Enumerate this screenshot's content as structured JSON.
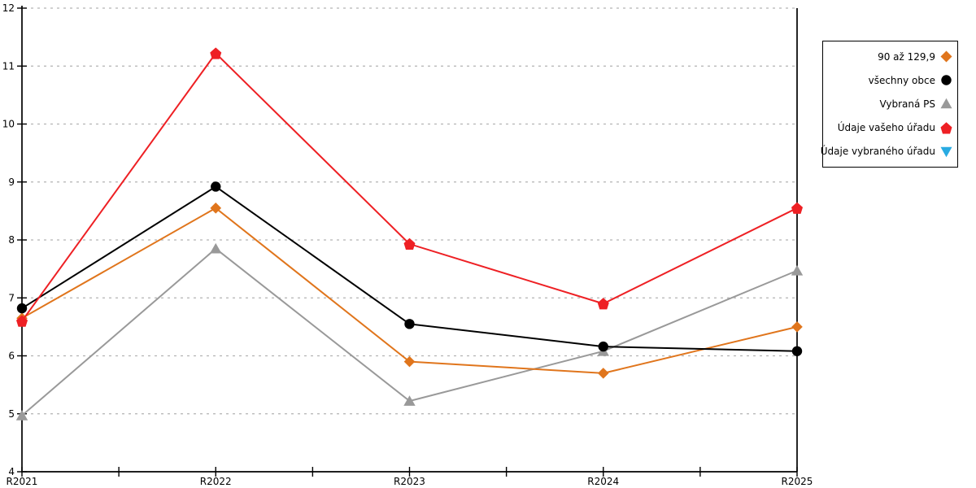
{
  "chart_data": {
    "type": "line",
    "title": "",
    "xlabel": "",
    "ylabel": "",
    "categories": [
      "R2021",
      "R2022",
      "R2023",
      "R2024",
      "R2025"
    ],
    "ylim": [
      4,
      12
    ],
    "yticks": [
      4,
      5,
      6,
      7,
      8,
      9,
      10,
      11,
      12
    ],
    "grid": "horizontal-dashed",
    "legend_position": "right",
    "series": [
      {
        "name": "90 až 129,9",
        "marker": "diamond",
        "color": "#e0751c",
        "values": [
          6.65,
          8.55,
          5.9,
          5.7,
          6.5
        ]
      },
      {
        "name": "všechny obce",
        "marker": "circle",
        "color": "#000000",
        "values": [
          6.82,
          8.92,
          6.55,
          6.16,
          6.08
        ]
      },
      {
        "name": "Vybraná PS",
        "marker": "triangle-up",
        "color": "#999999",
        "values": [
          4.97,
          7.85,
          5.22,
          6.08,
          7.47
        ]
      },
      {
        "name": "Údaje vašeho úřadu",
        "marker": "pentagon",
        "color": "#ee2024",
        "values": [
          6.6,
          11.22,
          7.93,
          6.9,
          8.55
        ]
      },
      {
        "name": "Údaje vybraného úřadu",
        "marker": "triangle-down",
        "color": "#29abe2",
        "values": []
      }
    ]
  },
  "colors": {
    "axis": "#000000",
    "gridline": "#b3b3b3",
    "background": "#ffffff"
  }
}
